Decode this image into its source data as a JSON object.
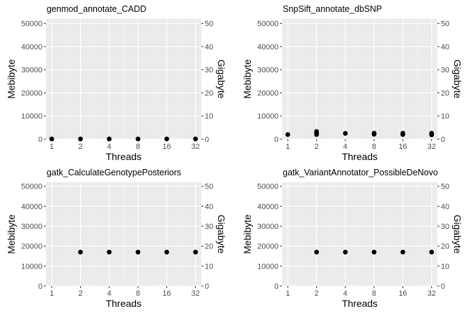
{
  "chart_data": [
    {
      "type": "scatter",
      "title": "genmod_annotate_CADD",
      "xlabel": "Threads",
      "ylabel": "Mebibyte",
      "y2label": "Gigabyte",
      "x_scale": "log2",
      "x_ticks": [
        "1",
        "2",
        "4",
        "8",
        "16",
        "32"
      ],
      "y_ticks": [
        "0",
        "10000",
        "20000",
        "30000",
        "40000",
        "50000"
      ],
      "y2_ticks": [
        "0",
        "10",
        "20",
        "30",
        "40",
        "50"
      ],
      "ylim": [
        0,
        52000
      ],
      "grid": true,
      "series": [
        {
          "x": [
            1,
            2,
            4,
            8,
            16,
            32
          ],
          "y": [
            100,
            100,
            100,
            100,
            100,
            100
          ]
        }
      ]
    },
    {
      "type": "scatter",
      "title": "SnpSift_annotate_dbSNP",
      "xlabel": "Threads",
      "ylabel": "Mebibyte",
      "y2label": "Gigabyte",
      "x_scale": "log2",
      "x_ticks": [
        "1",
        "2",
        "4",
        "8",
        "16",
        "32"
      ],
      "y_ticks": [
        "0",
        "10000",
        "20000",
        "30000",
        "40000",
        "50000"
      ],
      "y2_ticks": [
        "0",
        "10",
        "20",
        "30",
        "40",
        "50"
      ],
      "ylim": [
        0,
        52000
      ],
      "grid": true,
      "series": [
        {
          "x": [
            1,
            2,
            2,
            2,
            4,
            8,
            8,
            16,
            16,
            32,
            32
          ],
          "y": [
            2000,
            2000,
            2700,
            3300,
            2500,
            2100,
            2600,
            2000,
            2600,
            1900,
            2600
          ]
        }
      ]
    },
    {
      "type": "scatter",
      "title": "gatk_CalculateGenotypePosteriors",
      "xlabel": "Threads",
      "ylabel": "Mebibyte",
      "y2label": "Gigabyte",
      "x_scale": "log2",
      "x_ticks": [
        "1",
        "2",
        "4",
        "8",
        "16",
        "32"
      ],
      "y_ticks": [
        "0",
        "10000",
        "20000",
        "30000",
        "40000",
        "50000"
      ],
      "y2_ticks": [
        "0",
        "10",
        "20",
        "30",
        "40",
        "50"
      ],
      "ylim": [
        0,
        52000
      ],
      "grid": true,
      "series": [
        {
          "x": [
            2,
            4,
            8,
            16,
            32
          ],
          "y": [
            17000,
            17000,
            17000,
            17000,
            17000
          ]
        }
      ]
    },
    {
      "type": "scatter",
      "title": "gatk_VariantAnnotator_PossibleDeNovo",
      "xlabel": "Threads",
      "ylabel": "Mebibyte",
      "y2label": "Gigabyte",
      "x_scale": "log2",
      "x_ticks": [
        "1",
        "2",
        "4",
        "8",
        "16",
        "32"
      ],
      "y_ticks": [
        "0",
        "10000",
        "20000",
        "30000",
        "40000",
        "50000"
      ],
      "y2_ticks": [
        "0",
        "10",
        "20",
        "30",
        "40",
        "50"
      ],
      "ylim": [
        0,
        52000
      ],
      "grid": true,
      "series": [
        {
          "x": [
            2,
            4,
            8,
            16,
            32
          ],
          "y": [
            17000,
            17000,
            17000,
            17000,
            17000
          ]
        }
      ]
    }
  ]
}
